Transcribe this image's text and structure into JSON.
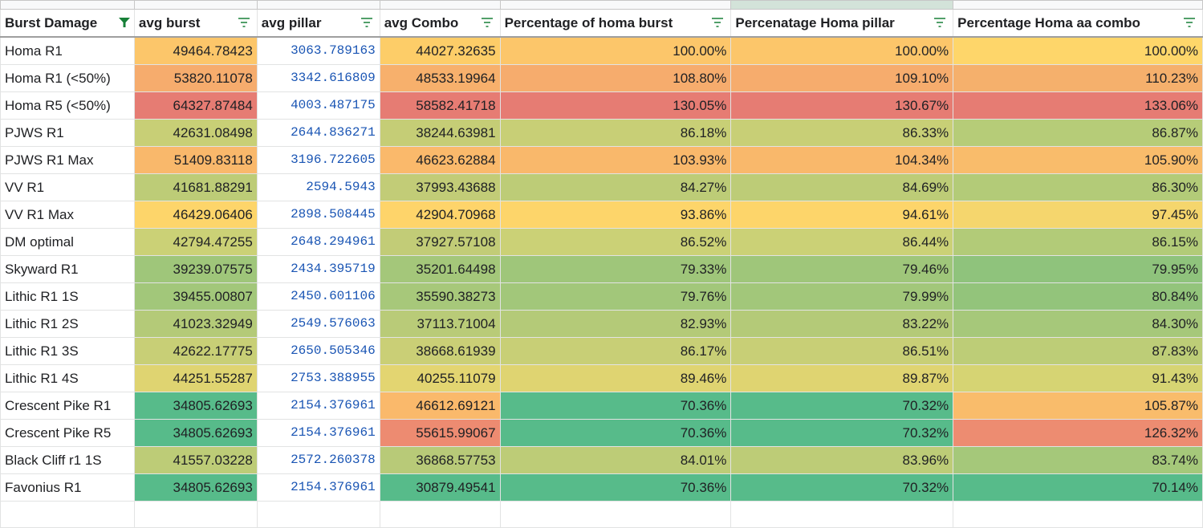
{
  "headers": [
    "Burst Damage",
    "avg burst",
    "avg pillar",
    "avg Combo",
    "Percentage of homa burst",
    "Percenatage Homa pillar",
    "Percentage Homa aa combo"
  ],
  "rows": [
    {
      "name": "Homa R1",
      "cells": [
        "49464.78423",
        "3063.789163",
        "44027.32635",
        "100.00%",
        "100.00%",
        "100.00%"
      ],
      "colors": [
        "#fcc66a",
        "#ffffff",
        "#fdcd68",
        "#fcc66a",
        "#fcc66a",
        "#fed66a"
      ]
    },
    {
      "name": "Homa R1 (<50%)",
      "cells": [
        "53820.11078",
        "3342.616809",
        "48533.19964",
        "108.80%",
        "109.10%",
        "110.23%"
      ],
      "colors": [
        "#f6ac6d",
        "#ffffff",
        "#f7b06c",
        "#f6ac6d",
        "#f6ac6d",
        "#f5b06c"
      ]
    },
    {
      "name": "Homa R5 (<50%)",
      "cells": [
        "64327.87484",
        "4003.487175",
        "58582.41718",
        "130.05%",
        "130.67%",
        "133.06%"
      ],
      "colors": [
        "#e67c73",
        "#ffffff",
        "#e67c73",
        "#e67c73",
        "#e67c73",
        "#e67c73"
      ]
    },
    {
      "name": "PJWS R1",
      "cells": [
        "42631.08498",
        "2644.836271",
        "38244.63981",
        "86.18%",
        "86.33%",
        "86.87%"
      ],
      "colors": [
        "#c8cf76",
        "#ffffff",
        "#c5cd76",
        "#c8cf76",
        "#c8cf76",
        "#b6cc78"
      ]
    },
    {
      "name": "PJWS R1 Max",
      "cells": [
        "51409.83118",
        "3196.722605",
        "46623.62884",
        "103.93%",
        "104.34%",
        "105.90%"
      ],
      "colors": [
        "#f9b86b",
        "#ffffff",
        "#fab96b",
        "#f9b86b",
        "#f9b86b",
        "#f9bc6b"
      ]
    },
    {
      "name": "VV R1",
      "cells": [
        "41681.88291",
        "2594.5943",
        "37993.43688",
        "84.27%",
        "84.69%",
        "86.30%"
      ],
      "colors": [
        "#bdcc77",
        "#ffffff",
        "#c2cc77",
        "#bdcc77",
        "#bdcc77",
        "#b3cb78"
      ]
    },
    {
      "name": "VV R1 Max",
      "cells": [
        "46429.06406",
        "2898.508445",
        "42904.70968",
        "93.86%",
        "94.61%",
        "97.45%"
      ],
      "colors": [
        "#fdd56a",
        "#ffffff",
        "#fed46a",
        "#fdd56a",
        "#fdd56a",
        "#f5d66d"
      ]
    },
    {
      "name": "DM optimal",
      "cells": [
        "42794.47255",
        "2648.294961",
        "37927.57108",
        "86.52%",
        "86.44%",
        "86.15%"
      ],
      "colors": [
        "#cbd176",
        "#ffffff",
        "#c2cc77",
        "#cbd176",
        "#cbd176",
        "#b2cb78"
      ]
    },
    {
      "name": "Skyward R1",
      "cells": [
        "39239.07575",
        "2434.395719",
        "35201.64498",
        "79.33%",
        "79.46%",
        "79.95%"
      ],
      "colors": [
        "#9fc67a",
        "#ffffff",
        "#a4c77a",
        "#9fc67a",
        "#9fc67a",
        "#8fc37c"
      ]
    },
    {
      "name": "Lithic R1 1S",
      "cells": [
        "39455.00807",
        "2450.601106",
        "35590.38273",
        "79.76%",
        "79.99%",
        "80.84%"
      ],
      "colors": [
        "#a2c77a",
        "#ffffff",
        "#a7c87a",
        "#a2c77a",
        "#a2c77a",
        "#93c47b"
      ]
    },
    {
      "name": "Lithic R1 2S",
      "cells": [
        "41023.32949",
        "2549.576063",
        "37113.71004",
        "82.93%",
        "83.22%",
        "84.30%"
      ],
      "colors": [
        "#b4ca78",
        "#ffffff",
        "#b9cb78",
        "#b4ca78",
        "#b4ca78",
        "#a6c87a"
      ]
    },
    {
      "name": "Lithic R1 3S",
      "cells": [
        "42622.17775",
        "2650.505346",
        "38668.61939",
        "86.17%",
        "86.51%",
        "87.83%"
      ],
      "colors": [
        "#c8cf76",
        "#ffffff",
        "#cacf76",
        "#c8cf76",
        "#c8cf76",
        "#bdcd77"
      ]
    },
    {
      "name": "Lithic R1 4S",
      "cells": [
        "44251.55287",
        "2753.388955",
        "40255.11079",
        "89.46%",
        "89.87%",
        "91.43%"
      ],
      "colors": [
        "#dfd471",
        "#ffffff",
        "#e3d571",
        "#dfd471",
        "#dfd471",
        "#d6d473"
      ]
    },
    {
      "name": "Crescent Pike R1",
      "cells": [
        "34805.62693",
        "2154.376961",
        "46612.69121",
        "70.36%",
        "70.32%",
        "105.87%"
      ],
      "colors": [
        "#57bb8a",
        "#ffffff",
        "#fab96b",
        "#57bb8a",
        "#57bb8a",
        "#f9bc6b"
      ]
    },
    {
      "name": "Crescent Pike R5",
      "cells": [
        "34805.62693",
        "2154.376961",
        "55615.99067",
        "70.36%",
        "70.32%",
        "126.32%"
      ],
      "colors": [
        "#57bb8a",
        "#ffffff",
        "#ed8b71",
        "#57bb8a",
        "#57bb8a",
        "#ed8c71"
      ]
    },
    {
      "name": "Black Cliff r1 1S",
      "cells": [
        "41557.03228",
        "2572.260378",
        "36868.57753",
        "84.01%",
        "83.96%",
        "83.74%"
      ],
      "colors": [
        "#bdcc77",
        "#ffffff",
        "#b8ca78",
        "#bdcc77",
        "#bdcc77",
        "#a5c87a"
      ]
    },
    {
      "name": "Favonius R1",
      "cells": [
        "34805.62693",
        "2154.376961",
        "30879.49541",
        "70.36%",
        "70.32%",
        "70.14%"
      ],
      "colors": [
        "#57bb8a",
        "#ffffff",
        "#57bb8a",
        "#57bb8a",
        "#57bb8a",
        "#57bb8a"
      ]
    }
  ],
  "icons": {
    "filter_active": "filter-active-icon",
    "filter": "filter-icon"
  },
  "colors": {
    "filter_green": "#188038"
  }
}
